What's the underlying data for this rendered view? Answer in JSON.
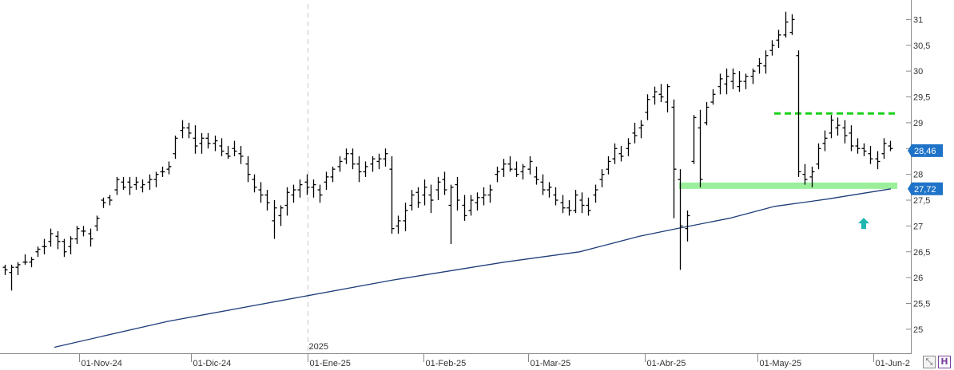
{
  "chart_data": {
    "type": "ohlc",
    "y_ticks": [
      "31",
      "30,5",
      "30",
      "29,5",
      "29",
      "28,5",
      "28",
      "27,5",
      "27",
      "26,5",
      "26",
      "25,5",
      "25"
    ],
    "y_tick_values": [
      31,
      30.5,
      30,
      29.5,
      29,
      28.5,
      28,
      27.5,
      27,
      26.5,
      26,
      25.5,
      25
    ],
    "ylim": [
      24.55,
      31.3
    ],
    "x_ticks": [
      {
        "label": "01-Nov-24",
        "date": "2024-11-01"
      },
      {
        "label": "01-Dic-24",
        "date": "2024-12-01"
      },
      {
        "label": "01-Ene-25",
        "date": "2025-01-01"
      },
      {
        "label": "01-Feb-25",
        "date": "2025-02-01"
      },
      {
        "label": "01-Mar-25",
        "date": "2025-03-01"
      },
      {
        "label": "01-Abr-25",
        "date": "2025-04-01"
      },
      {
        "label": "01-May-25",
        "date": "2025-05-01"
      },
      {
        "label": "01-Jun-2",
        "date": "2025-06-01"
      }
    ],
    "year_marker": {
      "label": "2025",
      "date": "2025-01-01"
    },
    "series": [
      {
        "type": "ohlc",
        "color": "#000000",
        "values": [
          [
            26.2,
            26.25,
            26.05,
            26.15
          ],
          [
            26.1,
            26.25,
            25.75,
            26.2
          ],
          [
            26.2,
            26.3,
            26.05,
            26.25
          ],
          [
            26.3,
            26.45,
            26.25,
            26.3
          ],
          [
            26.3,
            26.4,
            26.2,
            26.35
          ],
          [
            26.5,
            26.6,
            26.4,
            26.55
          ],
          [
            26.6,
            26.75,
            26.45,
            26.6
          ],
          [
            26.7,
            26.95,
            26.6,
            26.85
          ],
          [
            26.8,
            26.9,
            26.55,
            26.7
          ],
          [
            26.7,
            26.75,
            26.4,
            26.5
          ],
          [
            26.6,
            26.8,
            26.45,
            26.75
          ],
          [
            26.75,
            27.0,
            26.65,
            26.95
          ],
          [
            26.9,
            27.0,
            26.8,
            26.9
          ],
          [
            26.85,
            26.95,
            26.6,
            26.75
          ],
          [
            27.0,
            27.2,
            26.9,
            27.15
          ],
          [
            27.5,
            27.55,
            27.35,
            27.45
          ],
          [
            27.55,
            27.6,
            27.4,
            27.5
          ],
          [
            27.7,
            27.95,
            27.6,
            27.9
          ],
          [
            27.85,
            27.95,
            27.7,
            27.75
          ],
          [
            27.85,
            27.95,
            27.6,
            27.75
          ],
          [
            27.8,
            27.95,
            27.7,
            27.85
          ],
          [
            27.75,
            27.9,
            27.65,
            27.8
          ],
          [
            27.85,
            28.0,
            27.7,
            27.9
          ],
          [
            27.9,
            28.05,
            27.75,
            28.0
          ],
          [
            28.05,
            28.15,
            27.95,
            28.05
          ],
          [
            28.1,
            28.25,
            28.0,
            28.15
          ],
          [
            28.4,
            28.75,
            28.3,
            28.7
          ],
          [
            28.85,
            29.05,
            28.7,
            28.9
          ],
          [
            28.9,
            29.0,
            28.7,
            28.8
          ],
          [
            28.7,
            28.95,
            28.4,
            28.55
          ],
          [
            28.6,
            28.8,
            28.4,
            28.7
          ],
          [
            28.7,
            28.8,
            28.5,
            28.6
          ],
          [
            28.6,
            28.75,
            28.45,
            28.65
          ],
          [
            28.55,
            28.7,
            28.35,
            28.45
          ],
          [
            28.4,
            28.55,
            28.3,
            28.35
          ],
          [
            28.5,
            28.65,
            28.35,
            28.45
          ],
          [
            28.4,
            28.55,
            28.2,
            28.35
          ],
          [
            28.2,
            28.35,
            27.85,
            28.0
          ],
          [
            27.9,
            28.0,
            27.65,
            27.75
          ],
          [
            27.7,
            27.85,
            27.45,
            27.6
          ],
          [
            27.6,
            27.7,
            27.3,
            27.45
          ],
          [
            27.1,
            27.5,
            26.75,
            27.35
          ],
          [
            27.2,
            27.4,
            27.0,
            27.35
          ],
          [
            27.4,
            27.75,
            27.2,
            27.65
          ],
          [
            27.6,
            27.8,
            27.45,
            27.7
          ],
          [
            27.7,
            27.9,
            27.55,
            27.8
          ],
          [
            27.85,
            28.0,
            27.6,
            27.75
          ],
          [
            27.75,
            27.9,
            27.55,
            27.8
          ],
          [
            27.7,
            27.8,
            27.45,
            27.6
          ],
          [
            27.85,
            28.05,
            27.7,
            27.95
          ],
          [
            27.95,
            28.15,
            27.85,
            28.1
          ],
          [
            28.15,
            28.35,
            28.05,
            28.25
          ],
          [
            28.3,
            28.5,
            28.2,
            28.4
          ],
          [
            28.4,
            28.5,
            28.1,
            28.2
          ],
          [
            28.2,
            28.35,
            27.85,
            28.05
          ],
          [
            28.05,
            28.25,
            27.95,
            28.15
          ],
          [
            28.2,
            28.35,
            28.05,
            28.3
          ],
          [
            28.25,
            28.4,
            28.1,
            28.3
          ],
          [
            28.3,
            28.5,
            28.15,
            28.4
          ],
          [
            28.1,
            28.35,
            26.85,
            26.95
          ],
          [
            27.0,
            27.2,
            26.85,
            27.1
          ],
          [
            27.1,
            27.45,
            26.9,
            27.3
          ],
          [
            27.4,
            27.7,
            27.3,
            27.6
          ],
          [
            27.65,
            27.75,
            27.35,
            27.45
          ],
          [
            27.6,
            27.9,
            27.4,
            27.75
          ],
          [
            27.6,
            27.8,
            27.25,
            27.5
          ],
          [
            27.7,
            27.95,
            27.5,
            27.85
          ],
          [
            27.9,
            28.05,
            27.6,
            27.7
          ],
          [
            27.4,
            27.8,
            26.65,
            27.75
          ],
          [
            27.8,
            27.95,
            27.3,
            27.5
          ],
          [
            27.4,
            27.6,
            27.1,
            27.2
          ],
          [
            27.3,
            27.6,
            27.2,
            27.5
          ],
          [
            27.45,
            27.65,
            27.3,
            27.55
          ],
          [
            27.55,
            27.75,
            27.4,
            27.6
          ],
          [
            27.6,
            27.8,
            27.45,
            27.7
          ],
          [
            28.0,
            28.15,
            27.85,
            28.05
          ],
          [
            28.1,
            28.3,
            27.95,
            28.2
          ],
          [
            28.2,
            28.35,
            28.05,
            28.1
          ],
          [
            28.1,
            28.25,
            27.95,
            28.0
          ],
          [
            28.05,
            28.2,
            27.9,
            28.15
          ],
          [
            28.1,
            28.35,
            28.0,
            28.25
          ],
          [
            27.95,
            28.15,
            27.8,
            27.9
          ],
          [
            27.85,
            28.0,
            27.6,
            27.7
          ],
          [
            27.7,
            27.85,
            27.55,
            27.75
          ],
          [
            27.6,
            27.75,
            27.4,
            27.5
          ],
          [
            27.45,
            27.6,
            27.25,
            27.35
          ],
          [
            27.35,
            27.5,
            27.2,
            27.3
          ],
          [
            27.3,
            27.7,
            27.25,
            27.6
          ],
          [
            27.5,
            27.65,
            27.25,
            27.4
          ],
          [
            27.4,
            27.55,
            27.2,
            27.3
          ],
          [
            27.6,
            27.8,
            27.45,
            27.7
          ],
          [
            27.9,
            28.1,
            27.75,
            28.0
          ],
          [
            28.1,
            28.35,
            28.0,
            28.25
          ],
          [
            28.3,
            28.6,
            28.2,
            28.5
          ],
          [
            28.4,
            28.55,
            28.25,
            28.35
          ],
          [
            28.5,
            28.7,
            28.35,
            28.6
          ],
          [
            28.8,
            29.0,
            28.6,
            28.75
          ],
          [
            28.9,
            29.05,
            28.7,
            28.95
          ],
          [
            29.2,
            29.55,
            29.05,
            29.45
          ],
          [
            29.5,
            29.7,
            29.35,
            29.6
          ],
          [
            29.55,
            29.75,
            29.4,
            29.5
          ],
          [
            29.4,
            29.75,
            29.2,
            29.7
          ],
          [
            29.3,
            29.45,
            27.15,
            28.1
          ],
          [
            27.9,
            28.1,
            26.15,
            27.0
          ],
          [
            26.95,
            27.3,
            26.7,
            27.2
          ],
          [
            28.25,
            29.15,
            28.2,
            29.1
          ],
          [
            28.9,
            29.25,
            27.75,
            27.9
          ],
          [
            29.0,
            29.4,
            28.95,
            29.3
          ],
          [
            29.4,
            29.65,
            29.35,
            29.55
          ],
          [
            29.7,
            29.95,
            29.55,
            29.85
          ],
          [
            29.75,
            30.05,
            29.55,
            29.9
          ],
          [
            29.8,
            30.05,
            29.65,
            29.95
          ],
          [
            29.7,
            30.0,
            29.6,
            29.8
          ],
          [
            29.8,
            29.95,
            29.65,
            29.9
          ],
          [
            29.9,
            30.05,
            29.75,
            30.0
          ],
          [
            30.1,
            30.25,
            29.95,
            30.15
          ],
          [
            30.1,
            30.4,
            29.95,
            30.3
          ],
          [
            30.4,
            30.6,
            30.3,
            30.5
          ],
          [
            30.6,
            30.8,
            30.45,
            30.7
          ],
          [
            30.7,
            31.15,
            30.65,
            30.95
          ],
          [
            30.75,
            31.1,
            30.7,
            31.0
          ],
          [
            30.3,
            30.4,
            27.95,
            28.05
          ],
          [
            28.0,
            28.2,
            27.8,
            27.9
          ],
          [
            27.95,
            28.15,
            27.75,
            28.05
          ],
          [
            28.2,
            28.6,
            28.1,
            28.5
          ],
          [
            28.6,
            28.85,
            28.45,
            28.7
          ],
          [
            28.8,
            29.15,
            28.7,
            29.05
          ],
          [
            28.9,
            29.1,
            28.75,
            28.95
          ],
          [
            28.9,
            29.05,
            28.6,
            28.75
          ],
          [
            28.8,
            28.95,
            28.45,
            28.55
          ],
          [
            28.55,
            28.7,
            28.4,
            28.5
          ],
          [
            28.5,
            28.6,
            28.35,
            28.45
          ],
          [
            28.4,
            28.55,
            28.2,
            28.3
          ],
          [
            28.3,
            28.45,
            28.1,
            28.25
          ],
          [
            28.4,
            28.7,
            28.3,
            28.6
          ],
          [
            28.55,
            28.65,
            28.45,
            28.5
          ]
        ]
      },
      {
        "type": "line",
        "color": "#1f3d7a",
        "values": [
          [
            0,
            24.65
          ],
          [
            150,
            25.15
          ],
          [
            300,
            25.55
          ],
          [
            450,
            25.95
          ],
          [
            600,
            26.3
          ],
          [
            700,
            26.5
          ],
          [
            780,
            26.8
          ],
          [
            830,
            26.95
          ],
          [
            900,
            27.15
          ],
          [
            960,
            27.38
          ],
          [
            1030,
            27.52
          ],
          [
            1115,
            27.72
          ]
        ]
      }
    ],
    "levels": [
      {
        "name": "resistance",
        "value": 29.18,
        "color": "#1bd11b",
        "style": "dashed"
      },
      {
        "name": "support",
        "value": 27.78,
        "color": "#9bef9b",
        "style": "band"
      }
    ],
    "price_labels": [
      {
        "text": "28,46",
        "value": 28.46,
        "color": "#1e73c8"
      },
      {
        "text": "27,72",
        "value": 27.72,
        "color": "#1e73c8"
      }
    ],
    "marker_arrow": {
      "value": 27.05,
      "color": "#1fb6b0"
    },
    "grid": false
  },
  "controls": {
    "scale_icon": "scale-icon",
    "save_icon": "save-icon",
    "scale_glyph": "⤡",
    "save_glyph": "H"
  }
}
